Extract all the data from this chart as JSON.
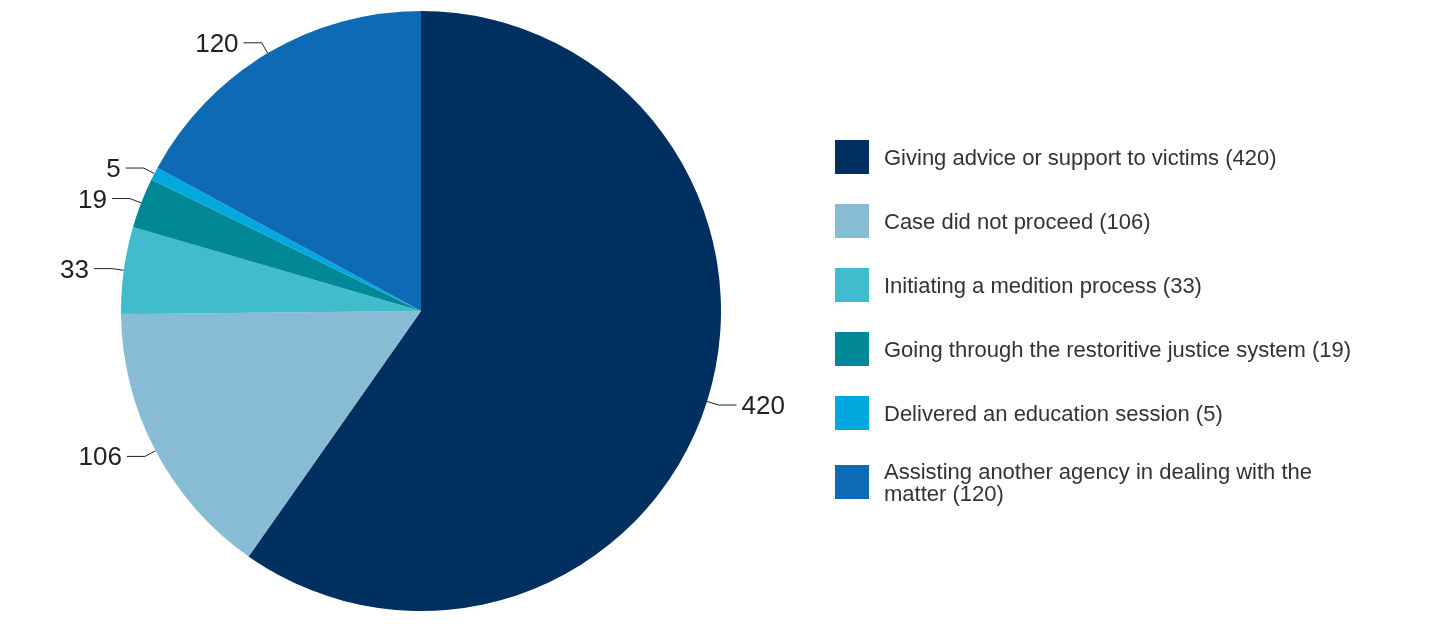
{
  "chart_data": {
    "type": "pie",
    "categories": [
      "Giving advice or support to victims (420)",
      "Case did not proceed (106)",
      "Initiating a medition process (33)",
      "Going through the restoritive justice system (19)",
      "Delivered an education session (5)",
      "Assisting another agency in dealing with the matter (120)"
    ],
    "values": [
      420,
      106,
      33,
      19,
      5,
      120
    ],
    "colors": [
      "#003060",
      "#88bcd4",
      "#40bccc",
      "#008896",
      "#00a8e0",
      "#0e6ab4"
    ],
    "data_labels": true,
    "legend": "right"
  }
}
